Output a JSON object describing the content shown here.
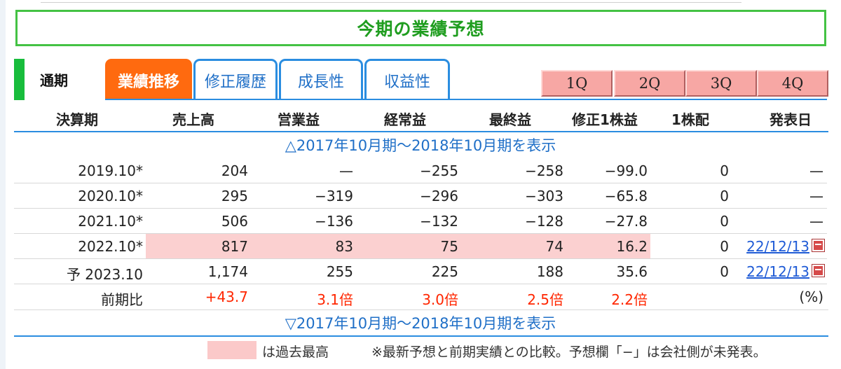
{
  "banner": {
    "title": "今期の業績予想"
  },
  "tabs": {
    "period_label": "通期",
    "items": [
      {
        "label": "業績推移",
        "active": true
      },
      {
        "label": "修正履歴",
        "active": false
      },
      {
        "label": "成長性",
        "active": false
      },
      {
        "label": "収益性",
        "active": false
      }
    ]
  },
  "quarters": [
    "1Q",
    "2Q",
    "3Q",
    "4Q"
  ],
  "columns": [
    "決算期",
    "売上高",
    "営業益",
    "経常益",
    "最終益",
    "修正1株益",
    "1株配",
    "発表日"
  ],
  "toggle_top": "△2017年10月期〜2018年10月期を表示",
  "toggle_bottom": "▽2017年10月期〜2018年10月期を表示",
  "rows": [
    {
      "period": "2019.10*",
      "sales": "204",
      "op": "—",
      "ord": "−255",
      "net": "−258",
      "eps": "−99.0",
      "div": "0",
      "date": "—",
      "highlight": false
    },
    {
      "period": "2020.10*",
      "sales": "295",
      "op": "−319",
      "ord": "−296",
      "net": "−303",
      "eps": "−65.8",
      "div": "0",
      "date": "—",
      "highlight": false
    },
    {
      "period": "2021.10*",
      "sales": "506",
      "op": "−136",
      "ord": "−132",
      "net": "−128",
      "eps": "−27.8",
      "div": "0",
      "date": "—",
      "highlight": false
    },
    {
      "period": "2022.10*",
      "sales": "817",
      "op": "83",
      "ord": "75",
      "net": "74",
      "eps": "16.2",
      "div": "0",
      "date": "22/12/13",
      "highlight": true
    },
    {
      "period": "予 2023.10",
      "sales": "1,174",
      "op": "255",
      "ord": "225",
      "net": "188",
      "eps": "35.6",
      "div": "0",
      "date": "22/12/13",
      "highlight": false
    }
  ],
  "ratio_row": {
    "label": "前期比",
    "sales": "+43.7",
    "op": "3.1倍",
    "ord": "3.0倍",
    "net": "2.5倍",
    "eps": "2.2倍",
    "unit": "(%)"
  },
  "legend": {
    "text": "は過去最高",
    "note": "※最新予想と前期実績との比較。予想欄「−」は会社側が未発表。"
  },
  "colors": {
    "accent_green": "#44c244",
    "tab_blue": "#2a8de0",
    "active_orange": "#ff6a0f",
    "record_pink": "#fbd0d0",
    "ratio_red": "#ff2600"
  },
  "icons": {
    "pdf": "pdf-icon"
  }
}
